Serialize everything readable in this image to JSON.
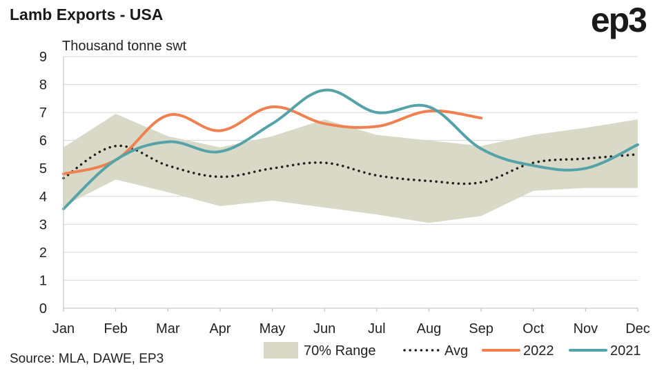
{
  "title": "Lamb Exports - USA",
  "logo": "ep3",
  "source": "Source: MLA, DAWE, EP3",
  "colors": {
    "range": "#d8d9c6",
    "avg": "#1f1f1f",
    "s2022": "#f08050",
    "s2021": "#55a3a8",
    "grid": "#d6d6d6"
  },
  "chart_data": {
    "type": "line",
    "ylabel": "Thousand tonne swt",
    "ylim": [
      0,
      9
    ],
    "yticks": [
      "0",
      "1",
      "2",
      "3",
      "4",
      "5",
      "6",
      "7",
      "8",
      "9"
    ],
    "categories": [
      "Jan",
      "Feb",
      "Mar",
      "Apr",
      "May",
      "Jun",
      "Jul",
      "Aug",
      "Sep",
      "Oct",
      "Nov",
      "Dec"
    ],
    "grid": true,
    "legend_position": "bottom-right",
    "range": {
      "name": "70% Range",
      "upper": [
        5.75,
        6.95,
        6.15,
        5.75,
        6.15,
        6.75,
        6.2,
        6.0,
        5.8,
        6.2,
        6.45,
        6.75
      ],
      "lower": [
        3.65,
        4.6,
        4.15,
        3.65,
        3.85,
        3.6,
        3.35,
        3.05,
        3.3,
        4.2,
        4.3,
        4.3
      ]
    },
    "series": [
      {
        "name": "Avg",
        "style": "dotted",
        "values": [
          4.65,
          5.8,
          5.1,
          4.7,
          5.0,
          5.2,
          4.75,
          4.55,
          4.5,
          5.2,
          5.35,
          5.5
        ]
      },
      {
        "name": "2022",
        "style": "solid",
        "values": [
          4.8,
          5.3,
          6.9,
          6.35,
          7.2,
          6.6,
          6.5,
          7.05,
          6.8,
          null,
          null,
          null
        ]
      },
      {
        "name": "2021",
        "style": "solid",
        "values": [
          3.55,
          5.3,
          5.95,
          5.6,
          6.6,
          7.8,
          7.0,
          7.2,
          5.7,
          5.1,
          5.0,
          5.85
        ]
      }
    ]
  }
}
